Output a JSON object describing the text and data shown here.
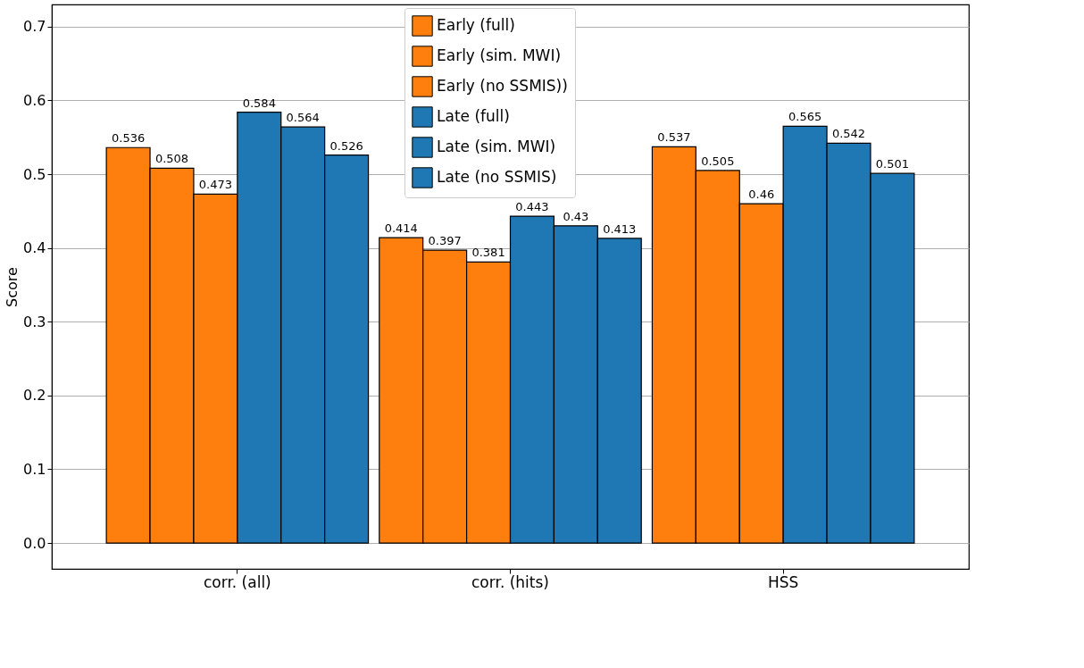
{
  "chart_data": {
    "type": "bar",
    "ylabel": "Score",
    "categories": [
      "corr. (all)",
      "corr. (hits)",
      "HSS"
    ],
    "series": [
      {
        "name": "Early (full)",
        "color": "#ff7f0e",
        "values": [
          0.536,
          0.414,
          0.537
        ]
      },
      {
        "name": "Early (sim. MWI)",
        "color": "#ff7f0e",
        "values": [
          0.508,
          0.397,
          0.505
        ]
      },
      {
        "name": "Early (no SSMIS))",
        "color": "#ff7f0e",
        "values": [
          0.473,
          0.381,
          0.46
        ]
      },
      {
        "name": "Late (full)",
        "color": "#1f77b4",
        "values": [
          0.584,
          0.443,
          0.565
        ]
      },
      {
        "name": "Late (sim. MWI)",
        "color": "#1f77b4",
        "values": [
          0.564,
          0.43,
          0.542
        ]
      },
      {
        "name": "Late (no SSMIS)",
        "color": "#1f77b4",
        "values": [
          0.526,
          0.413,
          0.501
        ]
      }
    ],
    "ylim": [
      -0.035,
      0.73
    ],
    "yticks": [
      {
        "value": 0,
        "label": "0.0"
      },
      {
        "value": 0.1,
        "label": "0.1"
      },
      {
        "value": 0.2,
        "label": "0.2"
      },
      {
        "value": 0.3,
        "label": "0.3"
      },
      {
        "value": 0.4,
        "label": "0.4"
      },
      {
        "value": 0.5,
        "label": "0.5"
      },
      {
        "value": 0.6,
        "label": "0.6"
      },
      {
        "value": 0.7,
        "label": "0.7"
      }
    ],
    "grid": "y",
    "legend": "top",
    "data_labels": true
  }
}
